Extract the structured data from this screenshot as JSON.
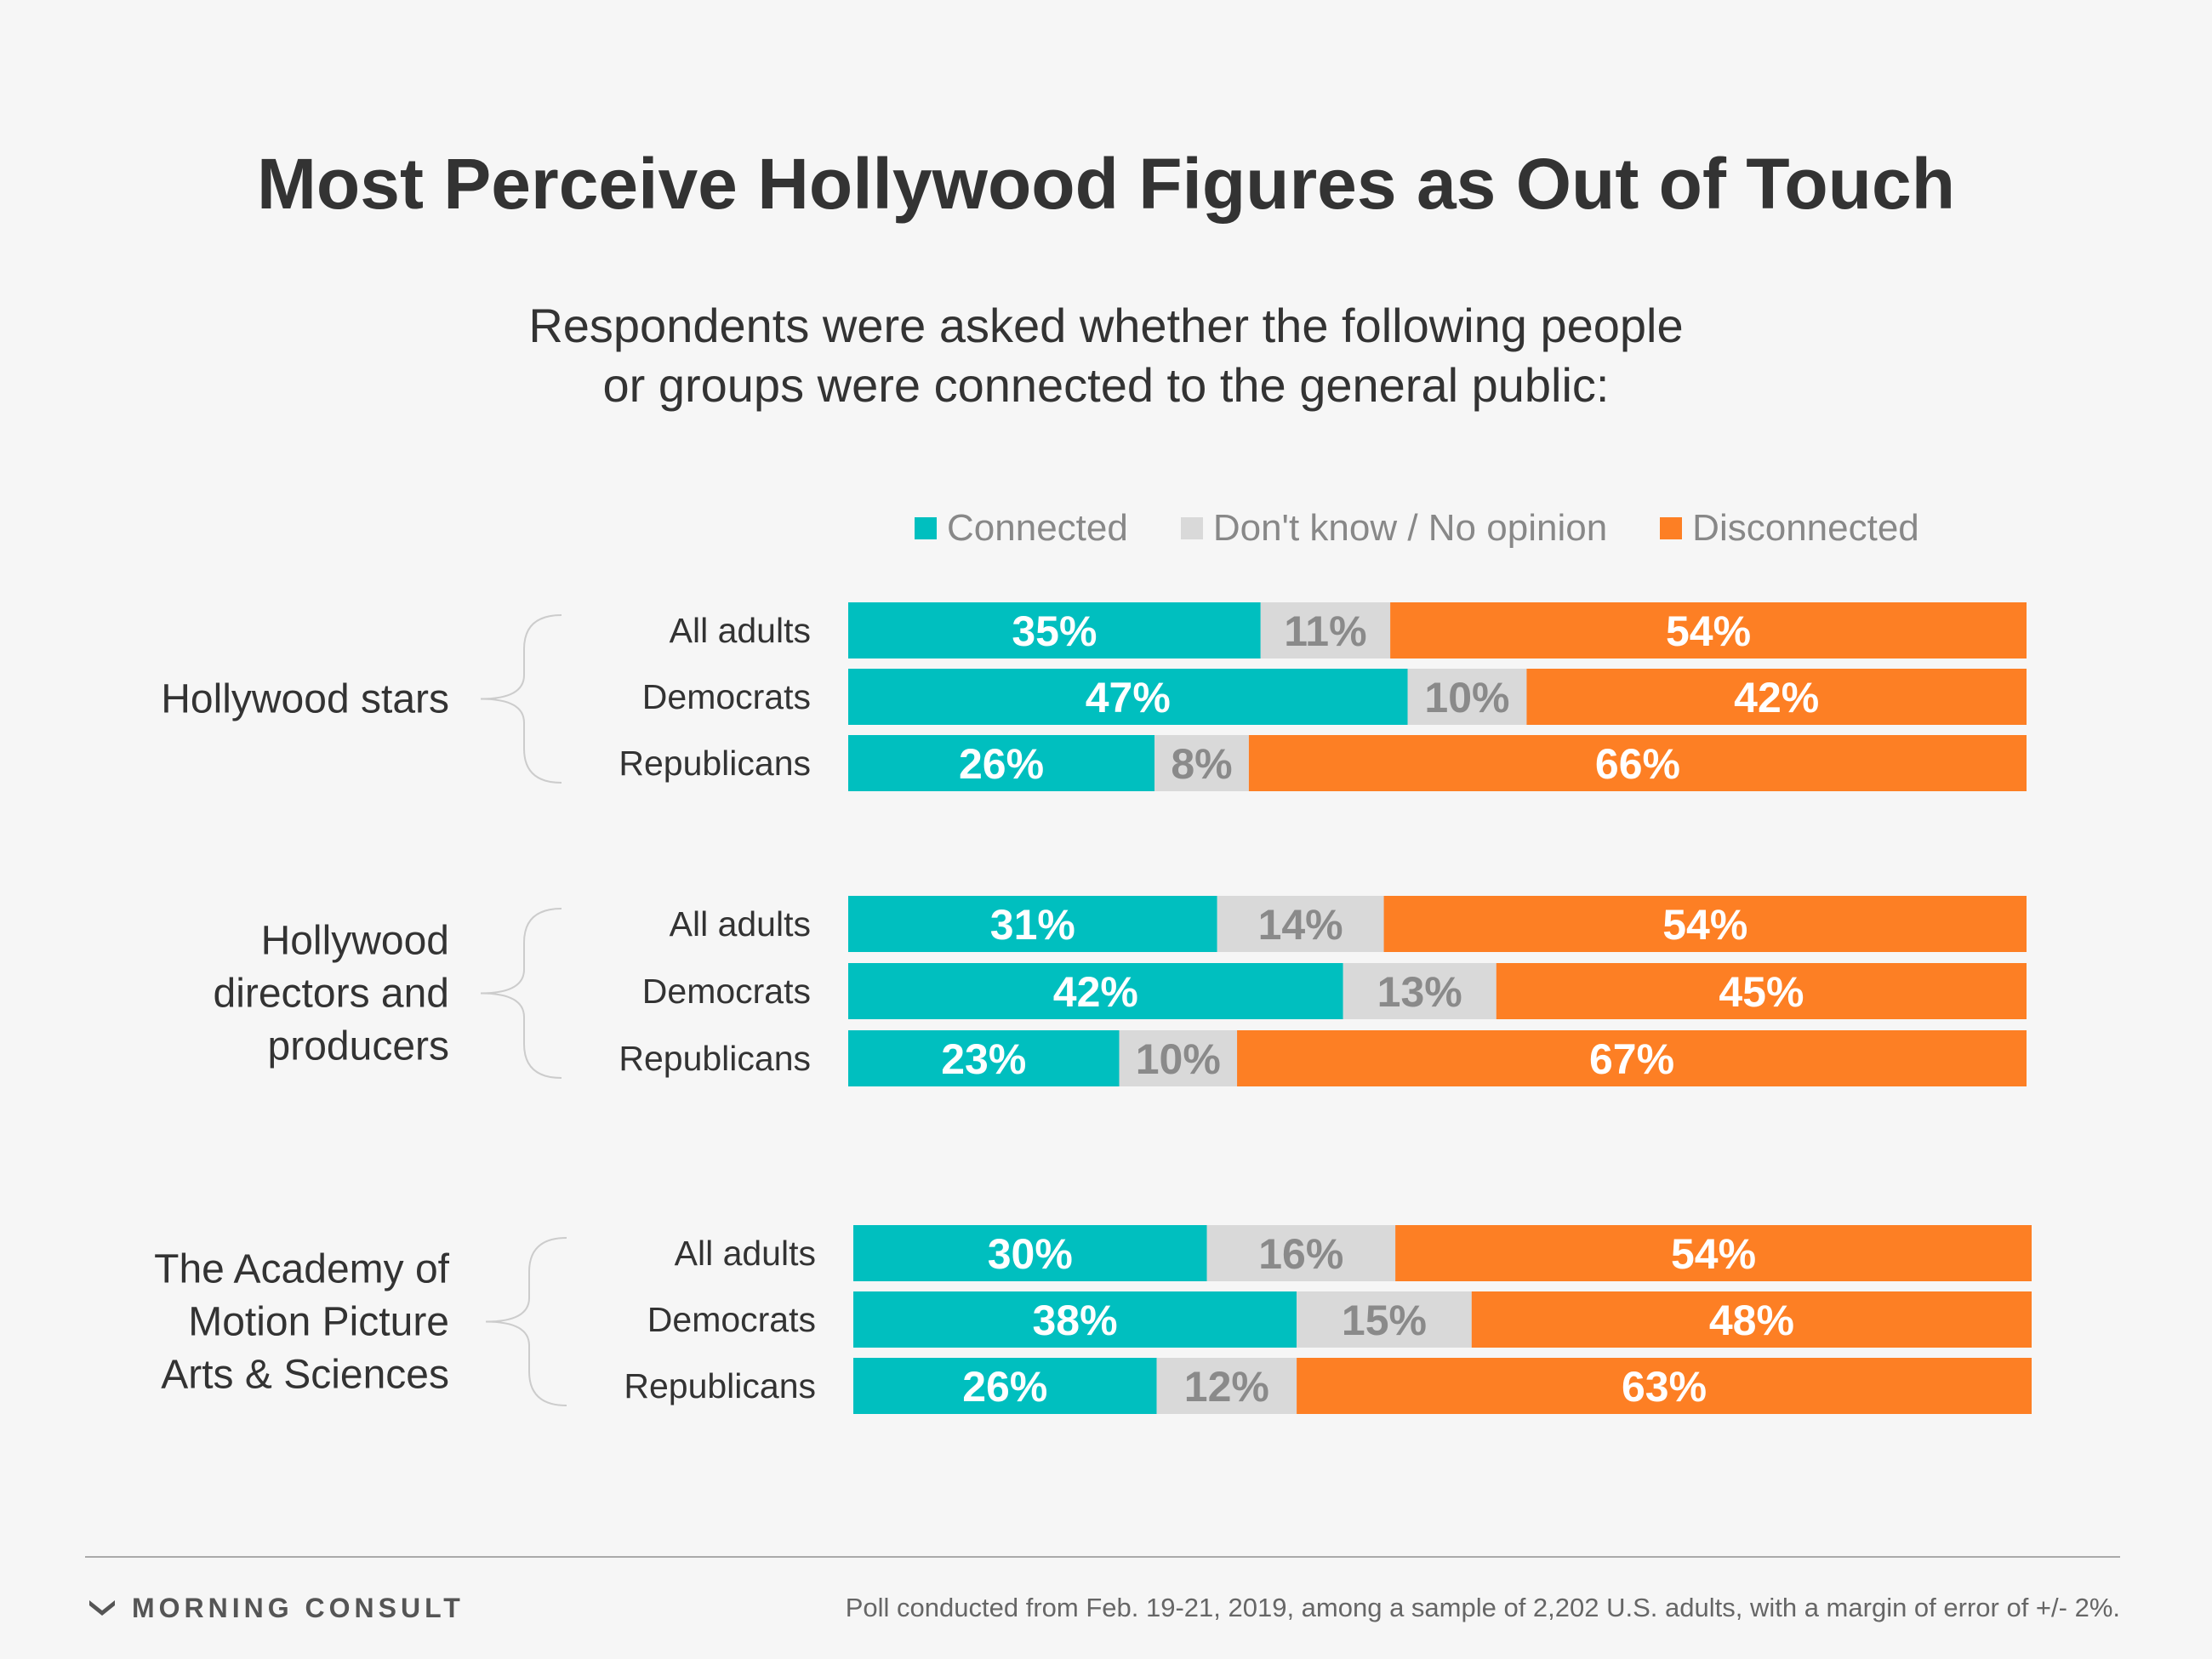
{
  "header": {
    "title": "Most Perceive Hollywood Figures as Out of Touch",
    "subtitle_line1": "Respondents were asked whether the following people",
    "subtitle_line2": "or groups were connected to the general public:"
  },
  "colors": {
    "connected": "#00bfbf",
    "dont_know": "#d9d9d9",
    "disconnected": "#fd7f24",
    "label_light": "#ffffff",
    "label_gray": "#8a8a8a"
  },
  "chart_data": {
    "type": "bar",
    "orientation": "horizontal",
    "stacked": true,
    "unit": "%",
    "legend_position": "top",
    "legend": [
      "Connected",
      "Don't know / No opinion",
      "Disconnected"
    ],
    "groups": [
      {
        "name": "Hollywood stars",
        "rows": [
          {
            "label": "All adults",
            "values": [
              35,
              11,
              54
            ]
          },
          {
            "label": "Democrats",
            "values": [
              47,
              10,
              42
            ]
          },
          {
            "label": "Republicans",
            "values": [
              26,
              8,
              66
            ]
          }
        ]
      },
      {
        "name": "Hollywood directors and producers",
        "name_lines": [
          "Hollywood",
          "directors and",
          "producers"
        ],
        "rows": [
          {
            "label": "All adults",
            "values": [
              31,
              14,
              54
            ]
          },
          {
            "label": "Democrats",
            "values": [
              42,
              13,
              45
            ]
          },
          {
            "label": "Republicans",
            "values": [
              23,
              10,
              67
            ]
          }
        ]
      },
      {
        "name": "The Academy of Motion Picture Arts & Sciences",
        "name_lines": [
          "The Academy of",
          "Motion Picture",
          "Arts & Sciences"
        ],
        "rows": [
          {
            "label": "All adults",
            "values": [
              30,
              16,
              54
            ]
          },
          {
            "label": "Democrats",
            "values": [
              38,
              15,
              48
            ]
          },
          {
            "label": "Republicans",
            "values": [
              26,
              12,
              63
            ]
          }
        ]
      }
    ]
  },
  "footer": {
    "brand": "MORNING CONSULT",
    "brand_icon": "morning-consult-logo-icon",
    "note": "Poll conducted from Feb. 19-21, 2019, among a sample of 2,202 U.S. adults, with a margin of error of +/- 2%."
  }
}
